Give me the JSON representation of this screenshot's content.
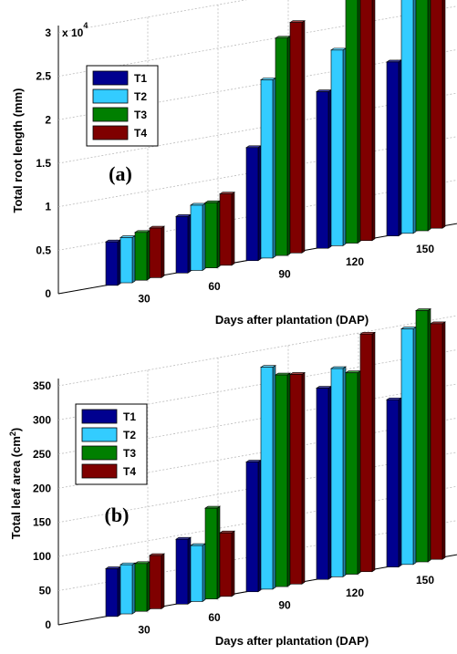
{
  "chart_data": [
    {
      "type": "bar",
      "panel_label": "(a)",
      "categories": [
        "30",
        "60",
        "90",
        "120",
        "150"
      ],
      "xlabel": "Days after plantation (DAP)",
      "ylabel": "Total root length (mm)",
      "y_multiplier": "x 10",
      "y_multiplier_exp": "4",
      "ylim": [
        0,
        3
      ],
      "yticks": [
        "0",
        "0.5",
        "1",
        "1.5",
        "2",
        "2.5",
        "3"
      ],
      "grid": true,
      "legend_position": "top-left",
      "series": [
        {
          "name": "T1",
          "color": "#00008f",
          "values": [
            0.5,
            0.65,
            1.3,
            1.8,
            2.0
          ]
        },
        {
          "name": "T2",
          "color": "#33ccff",
          "values": [
            0.52,
            0.75,
            2.05,
            2.25,
            2.7
          ]
        },
        {
          "name": "T3",
          "color": "#007f00",
          "values": [
            0.55,
            0.75,
            2.5,
            2.85,
            3.2
          ]
        },
        {
          "name": "T4",
          "color": "#7f0000",
          "values": [
            0.57,
            0.82,
            2.65,
            2.8,
            3.0
          ]
        }
      ]
    },
    {
      "type": "bar",
      "panel_label": "(b)",
      "categories": [
        "30",
        "60",
        "90",
        "120",
        "150"
      ],
      "xlabel": "Days after plantation (DAP)",
      "ylabel": "Total leaf area (cm",
      "ylabel_sup": "2",
      "ylabel_end": ")",
      "ylim": [
        0,
        350
      ],
      "yticks": [
        "0",
        "50",
        "100",
        "150",
        "200",
        "250",
        "300",
        "350"
      ],
      "grid": true,
      "legend_position": "top-left",
      "series": [
        {
          "name": "T1",
          "color": "#00008f",
          "values": [
            70,
            95,
            190,
            280,
            245
          ]
        },
        {
          "name": "T2",
          "color": "#33ccff",
          "values": [
            72,
            82,
            325,
            305,
            345
          ]
        },
        {
          "name": "T3",
          "color": "#007f00",
          "values": [
            70,
            133,
            310,
            295,
            368
          ]
        },
        {
          "name": "T4",
          "color": "#7f0000",
          "values": [
            78,
            93,
            307,
            348,
            345
          ]
        }
      ]
    }
  ]
}
